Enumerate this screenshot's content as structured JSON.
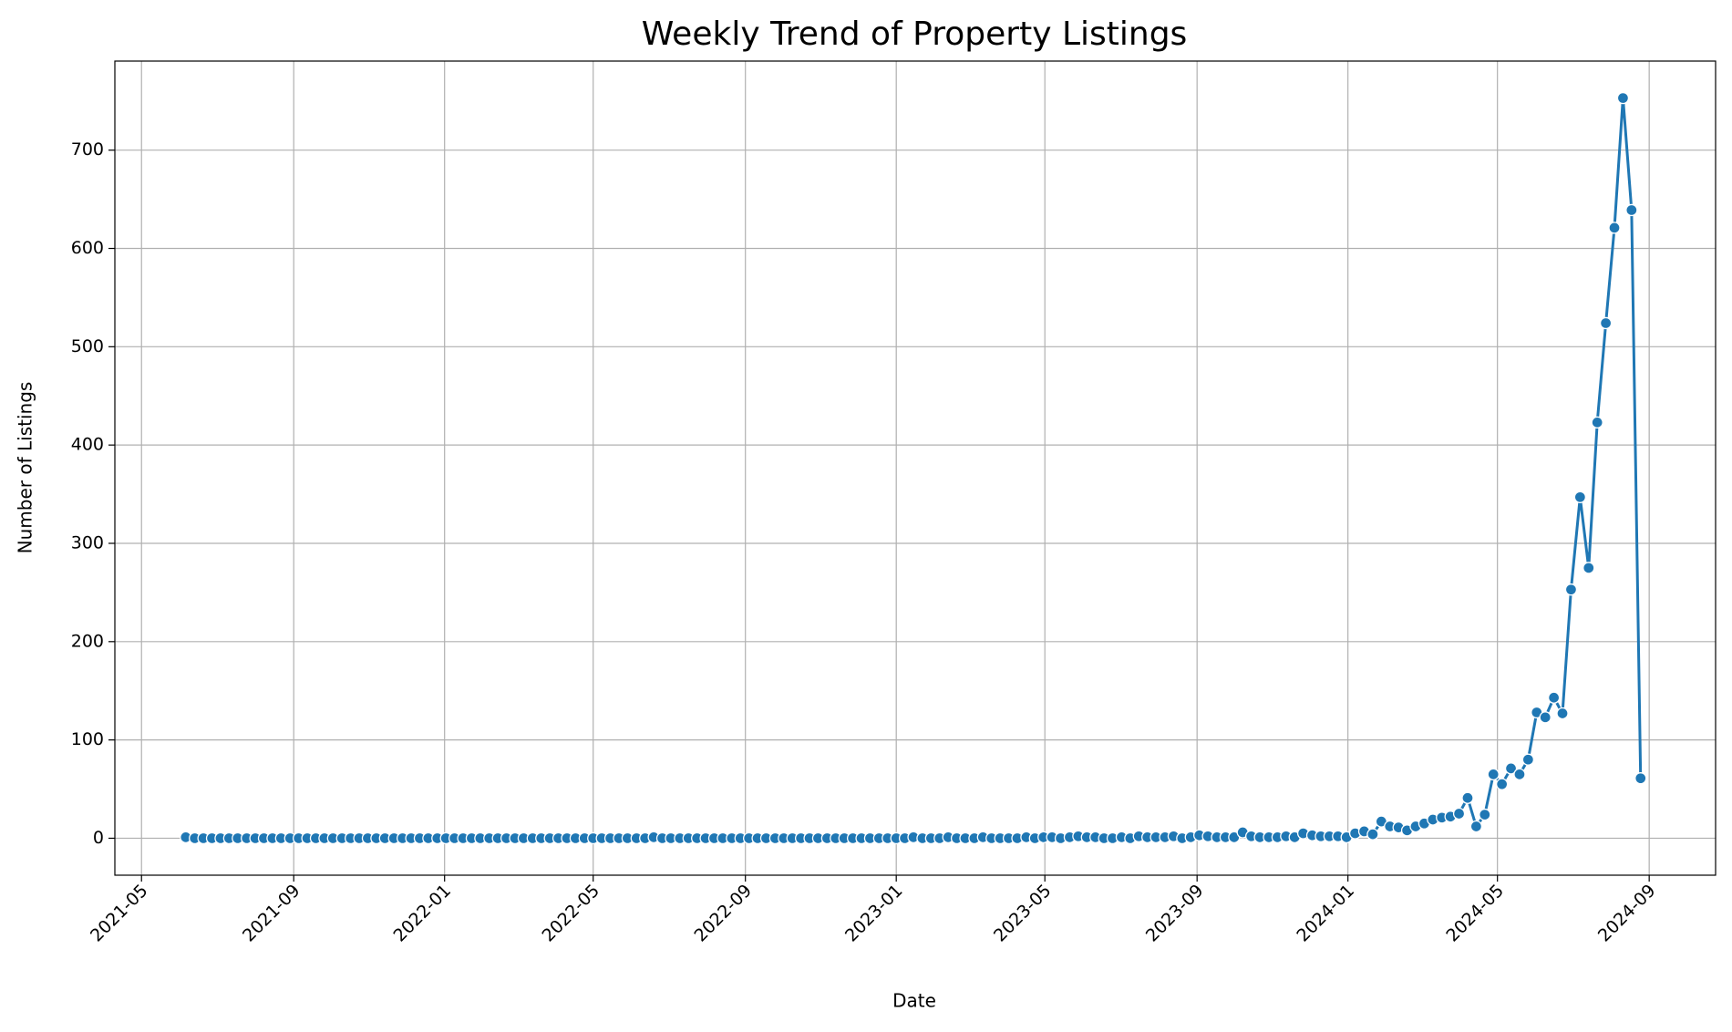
{
  "chart_data": {
    "type": "line",
    "title": "Weekly Trend of Property Listings",
    "x_label": "Date",
    "y_label": "Number of Listings",
    "color": "#1f77b4",
    "grid": true,
    "x": [
      2021.427,
      2021.447,
      2021.466,
      2021.485,
      2021.504,
      2021.523,
      2021.542,
      2021.562,
      2021.581,
      2021.6,
      2021.619,
      2021.638,
      2021.658,
      2021.677,
      2021.696,
      2021.715,
      2021.734,
      2021.753,
      2021.773,
      2021.792,
      2021.811,
      2021.83,
      2021.849,
      2021.868,
      2021.888,
      2021.907,
      2021.926,
      2021.945,
      2021.964,
      2021.984,
      2022.003,
      2022.022,
      2022.041,
      2022.06,
      2022.079,
      2022.099,
      2022.118,
      2022.137,
      2022.156,
      2022.175,
      2022.195,
      2022.214,
      2022.233,
      2022.252,
      2022.271,
      2022.29,
      2022.31,
      2022.329,
      2022.348,
      2022.367,
      2022.386,
      2022.405,
      2022.425,
      2022.444,
      2022.463,
      2022.482,
      2022.501,
      2022.521,
      2022.54,
      2022.559,
      2022.578,
      2022.597,
      2022.616,
      2022.636,
      2022.655,
      2022.674,
      2022.693,
      2022.712,
      2022.732,
      2022.751,
      2022.77,
      2022.789,
      2022.808,
      2022.827,
      2022.847,
      2022.866,
      2022.885,
      2022.904,
      2022.923,
      2022.942,
      2022.962,
      2022.981,
      2023.0,
      2023.019,
      2023.038,
      2023.058,
      2023.077,
      2023.096,
      2023.115,
      2023.134,
      2023.153,
      2023.173,
      2023.192,
      2023.211,
      2023.23,
      2023.249,
      2023.268,
      2023.288,
      2023.307,
      2023.326,
      2023.345,
      2023.364,
      2023.384,
      2023.403,
      2023.422,
      2023.441,
      2023.46,
      2023.479,
      2023.499,
      2023.518,
      2023.537,
      2023.556,
      2023.575,
      2023.595,
      2023.614,
      2023.633,
      2023.652,
      2023.671,
      2023.69,
      2023.71,
      2023.729,
      2023.748,
      2023.767,
      2023.786,
      2023.805,
      2023.825,
      2023.844,
      2023.863,
      2023.882,
      2023.901,
      2023.921,
      2023.94,
      2023.959,
      2023.978,
      2023.997,
      2024.016,
      2024.036,
      2024.055,
      2024.074,
      2024.093,
      2024.112,
      2024.131,
      2024.15,
      2024.169,
      2024.188,
      2024.208,
      2024.227,
      2024.246,
      2024.265,
      2024.284,
      2024.303,
      2024.322,
      2024.341,
      2024.361,
      2024.38,
      2024.399,
      2024.418,
      2024.437,
      2024.456,
      2024.475,
      2024.494,
      2024.514,
      2024.533,
      2024.552,
      2024.571,
      2024.59,
      2024.609,
      2024.628,
      2024.648
    ],
    "values": [
      1,
      0,
      0,
      0,
      0,
      0,
      0,
      0,
      0,
      0,
      0,
      0,
      0,
      0,
      0,
      0,
      0,
      0,
      0,
      0,
      0,
      0,
      0,
      0,
      0,
      0,
      0,
      0,
      0,
      0,
      0,
      0,
      0,
      0,
      0,
      0,
      0,
      0,
      0,
      0,
      0,
      0,
      0,
      0,
      0,
      0,
      0,
      0,
      0,
      0,
      0,
      0,
      0,
      0,
      1,
      0,
      0,
      0,
      0,
      0,
      0,
      0,
      0,
      0,
      0,
      0,
      0,
      0,
      0,
      0,
      0,
      0,
      0,
      0,
      0,
      0,
      0,
      0,
      0,
      0,
      0,
      0,
      0,
      0,
      1,
      0,
      0,
      0,
      1,
      0,
      0,
      0,
      1,
      0,
      0,
      0,
      0,
      1,
      0,
      1,
      1,
      0,
      1,
      2,
      1,
      1,
      0,
      0,
      1,
      0,
      2,
      1,
      1,
      1,
      2,
      0,
      1,
      3,
      2,
      1,
      1,
      1,
      6,
      2,
      1,
      1,
      1,
      2,
      1,
      5,
      3,
      2,
      2,
      2,
      1,
      5,
      7,
      4,
      17,
      12,
      11,
      8,
      12,
      15,
      19,
      21,
      22,
      25,
      41,
      12,
      24,
      65,
      55,
      71,
      65,
      80,
      128,
      123,
      143,
      127,
      253,
      347,
      275,
      423,
      524,
      621,
      753,
      639,
      61
    ],
    "xlim": [
      2021.27,
      2024.814
    ],
    "xticks": [
      {
        "value": 2021.329,
        "label": "2021-05"
      },
      {
        "value": 2021.666,
        "label": "2021-09"
      },
      {
        "value": 2022.0,
        "label": "2022-01"
      },
      {
        "value": 2022.329,
        "label": "2022-05"
      },
      {
        "value": 2022.666,
        "label": "2022-09"
      },
      {
        "value": 2023.0,
        "label": "2023-01"
      },
      {
        "value": 2023.329,
        "label": "2023-05"
      },
      {
        "value": 2023.666,
        "label": "2023-09"
      },
      {
        "value": 2024.0,
        "label": "2024-01"
      },
      {
        "value": 2024.331,
        "label": "2024-05"
      },
      {
        "value": 2024.667,
        "label": "2024-09"
      }
    ],
    "ylim": [
      -37.6,
      790.6
    ],
    "yticks": [
      0,
      100,
      200,
      300,
      400,
      500,
      600,
      700
    ]
  }
}
